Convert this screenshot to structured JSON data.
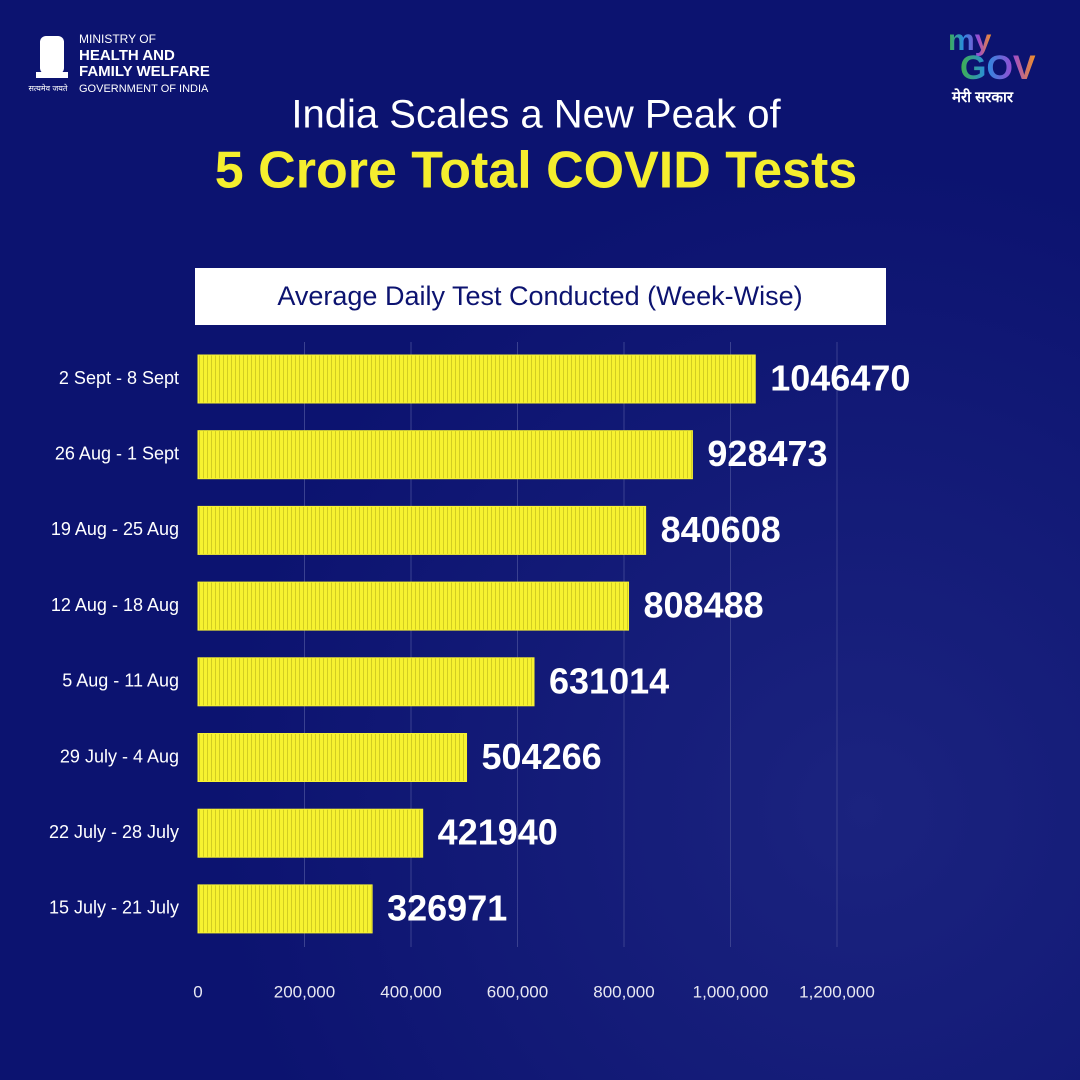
{
  "header": {
    "ministry": [
      "MINISTRY OF",
      "HEALTH AND",
      "FAMILY WELFARE",
      "GOVERNMENT OF INDIA"
    ],
    "motto": "सत्यमेव जयते",
    "mygov": [
      "my",
      "GOV"
    ],
    "mygov_tagline": "मेरी सरकार"
  },
  "headline": [
    "India Scales a New Peak of",
    "5 Crore Total COVID Tests"
  ],
  "chart_data": {
    "type": "bar",
    "orientation": "horizontal",
    "title": "Average Daily Test Conducted (Week-Wise)",
    "categories": [
      "2 Sept - 8 Sept",
      "26 Aug - 1 Sept",
      "19 Aug - 25 Aug",
      "12 Aug - 18 Aug",
      "5 Aug - 11 Aug",
      "29 July - 4 Aug",
      "22 July - 28 July",
      "15 July - 21 July"
    ],
    "values": [
      1046470,
      928473,
      840608,
      808488,
      631014,
      504266,
      421940,
      326971
    ],
    "color": "#f7f230",
    "xlim": [
      0,
      1200000
    ],
    "xticks": [
      0,
      {
        "value": 200000,
        "label": "200,000"
      },
      {
        "value": 400000,
        "label": "400,000"
      },
      {
        "value": 600000,
        "label": "600,000"
      },
      {
        "value": 800000,
        "label": "800,000"
      },
      {
        "value": 1000000,
        "label": "1,000,000"
      },
      {
        "value": 1200000,
        "label": "1,200,000"
      }
    ],
    "grid": true
  }
}
